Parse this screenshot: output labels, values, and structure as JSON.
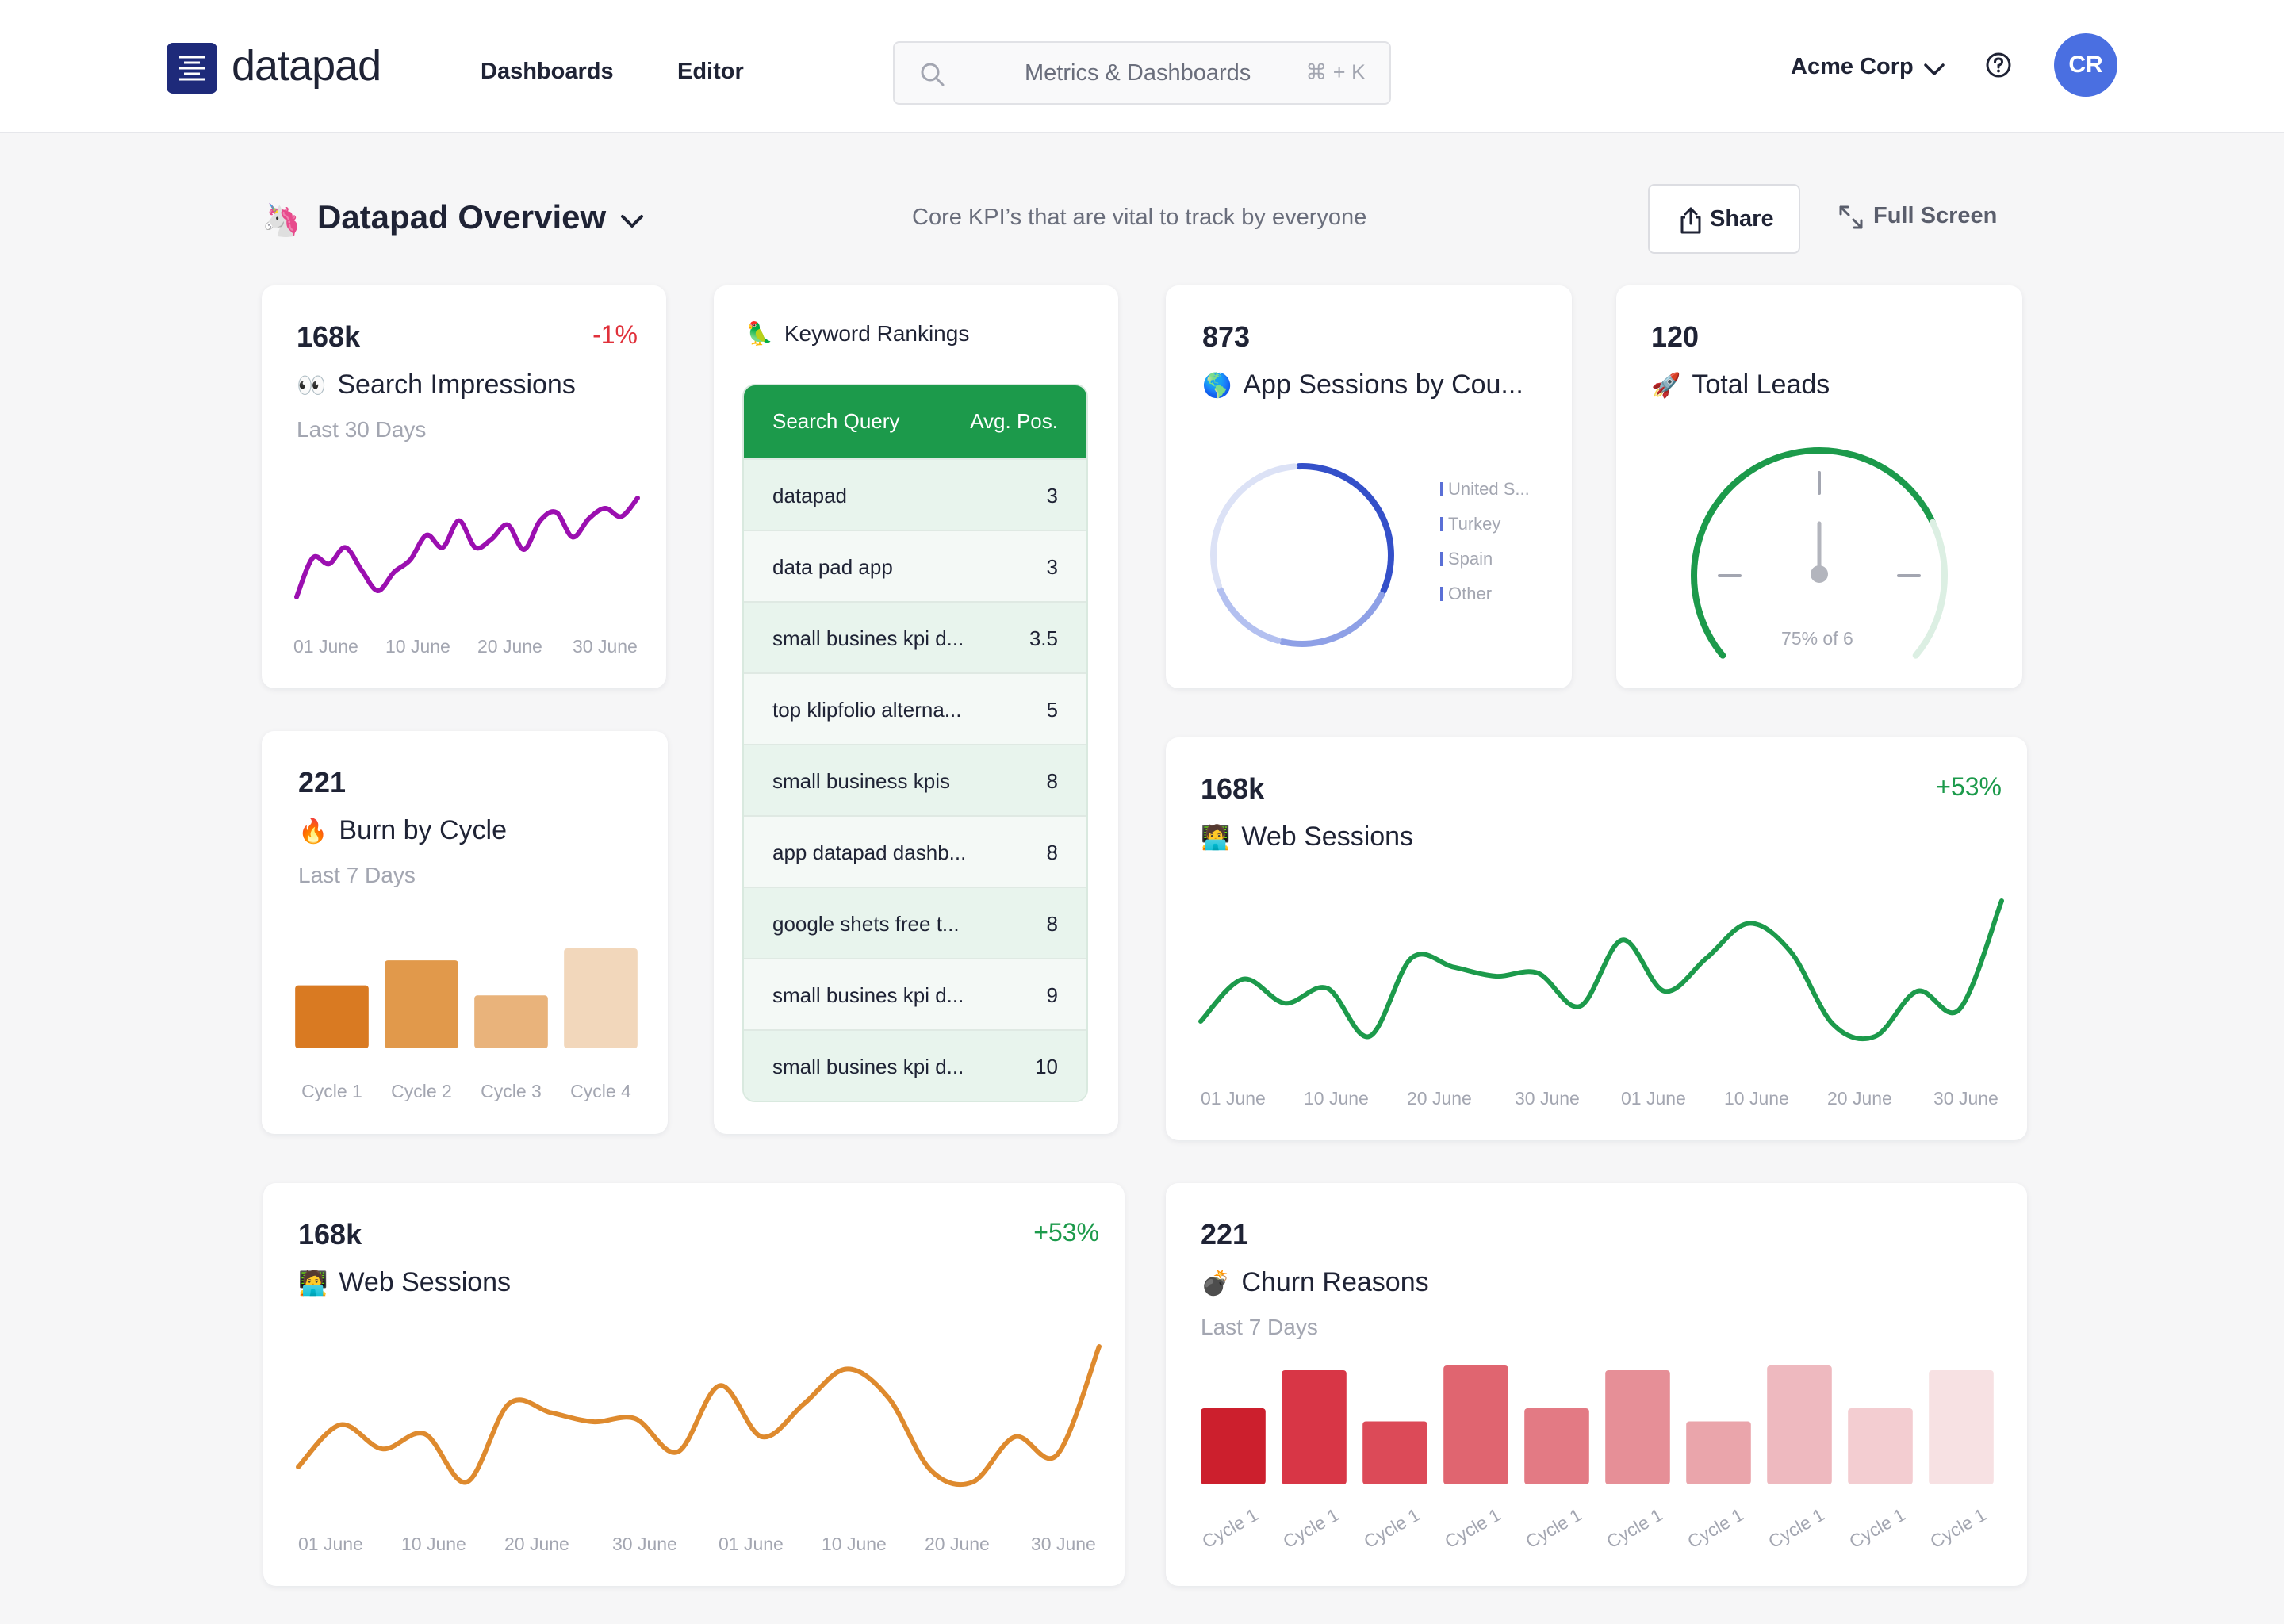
{
  "app": {
    "name": "datapad",
    "nav": [
      "Dashboards",
      "Editor"
    ],
    "search_placeholder": "Metrics & Dashboards",
    "search_shortcut": "⌘ + K",
    "org": "Acme Corp",
    "avatar_initials": "CR"
  },
  "dashboard": {
    "emoji": "🦄",
    "title": "Datapad Overview",
    "subtitle": "Core KPI’s that are vital to track by everyone",
    "share_label": "Share",
    "fullscreen_label": "Full Screen"
  },
  "cards": {
    "impressions": {
      "kpi": "168k",
      "delta": "-1%",
      "emoji": "👀",
      "title": "Search Impressions",
      "subtitle": "Last 30 Days",
      "color": "#9b0fb0",
      "x_labels": [
        "01 June",
        "10 June",
        "20 June",
        "30 June"
      ]
    },
    "keywords": {
      "emoji": "🦜",
      "title": "Keyword Rankings",
      "columns": [
        "Search Query",
        "Avg. Pos."
      ],
      "rows": [
        {
          "query": "datapad",
          "pos": "3"
        },
        {
          "query": "data pad app",
          "pos": "3"
        },
        {
          "query": "small busines kpi d...",
          "pos": "3.5"
        },
        {
          "query": "top klipfolio alterna...",
          "pos": "5"
        },
        {
          "query": "small business kpis",
          "pos": "8"
        },
        {
          "query": "app datapad dashb...",
          "pos": "8"
        },
        {
          "query": "google shets free t...",
          "pos": "8"
        },
        {
          "query": "small busines kpi d...",
          "pos": "9"
        },
        {
          "query": "small busines kpi d...",
          "pos": "10"
        }
      ]
    },
    "app_sessions": {
      "kpi": "873",
      "emoji": "🌎",
      "title": "App Sessions by Cou...",
      "legend": [
        "United S...",
        "Turkey",
        "Spain",
        "Other"
      ]
    },
    "leads": {
      "kpi": "120",
      "emoji": "🚀",
      "title": "Total Leads",
      "gauge_label": "75% of 6",
      "gauge_fraction": 0.75
    },
    "burn": {
      "kpi": "221",
      "emoji": "🔥",
      "title": "Burn by Cycle",
      "subtitle": "Last 7 Days"
    },
    "web_sessions_green": {
      "kpi": "168k",
      "delta": "+53%",
      "emoji": "🧑‍💻",
      "title": "Web Sessions",
      "color": "#1c9a4b",
      "x_labels": [
        "01 June",
        "10 June",
        "20 June",
        "30 June",
        "01 June",
        "10 June",
        "20 June",
        "30 June"
      ]
    },
    "web_sessions_orange": {
      "kpi": "168k",
      "delta": "+53%",
      "emoji": "🧑‍💻",
      "title": "Web Sessions",
      "color": "#de8a2e",
      "x_labels": [
        "01 June",
        "10 June",
        "20 June",
        "30 June",
        "01 June",
        "10 June",
        "20 June",
        "30 June"
      ]
    },
    "churn": {
      "kpi": "221",
      "emoji": "💣",
      "title": "Churn Reasons",
      "subtitle": "Last 7 Days"
    }
  },
  "chart_data": [
    {
      "type": "line",
      "values": [
        0.04,
        0.42,
        0.36,
        0.52,
        0.3,
        0.1,
        0.28,
        0.4,
        0.64,
        0.52,
        0.78,
        0.52,
        0.6,
        0.74,
        0.5,
        0.78,
        0.86,
        0.62,
        0.8,
        0.9,
        0.82,
        1.0
      ],
      "xlabel": "",
      "ylabel": "",
      "x_ticks": [
        "01 June",
        "10 June",
        "20 June",
        "30 June"
      ]
    },
    {
      "type": "bar",
      "categories": [
        "Cycle 1",
        "Cycle 2",
        "Cycle 3",
        "Cycle 4"
      ],
      "values": [
        0.63,
        0.88,
        0.53,
        1.0
      ],
      "colors": [
        "#d97a22",
        "#e1994b",
        "#e9b37b",
        "#f2d7bb"
      ]
    },
    {
      "type": "pie",
      "categories": [
        "United S...",
        "Turkey",
        "Spain",
        "Other"
      ],
      "values": [
        0.33,
        0.22,
        0.15,
        0.3
      ],
      "colors": [
        "#3450c9",
        "#8ea0e6",
        "#b3c0f0",
        "#dce2f6"
      ]
    },
    {
      "type": "line",
      "values": [
        0.2,
        0.48,
        0.32,
        0.42,
        0.1,
        0.62,
        0.56,
        0.5,
        0.52,
        0.3,
        0.74,
        0.4,
        0.62,
        0.85,
        0.66,
        0.18,
        0.1,
        0.4,
        0.28,
        1.0
      ],
      "xlabel": "",
      "ylabel": "",
      "x_ticks": [
        "01 June",
        "10 June",
        "20 June",
        "30 June",
        "01 June",
        "10 June",
        "20 June",
        "30 June"
      ]
    },
    {
      "type": "line",
      "values": [
        0.2,
        0.48,
        0.32,
        0.42,
        0.1,
        0.62,
        0.56,
        0.5,
        0.52,
        0.3,
        0.74,
        0.4,
        0.62,
        0.85,
        0.66,
        0.18,
        0.1,
        0.4,
        0.28,
        1.0
      ],
      "xlabel": "",
      "ylabel": "",
      "x_ticks": [
        "01 June",
        "10 June",
        "20 June",
        "30 June",
        "01 June",
        "10 June",
        "20 June",
        "30 June"
      ]
    },
    {
      "type": "bar",
      "categories": [
        "Cycle 1",
        "Cycle 1",
        "Cycle 1",
        "Cycle 1",
        "Cycle 1",
        "Cycle 1",
        "Cycle 1",
        "Cycle 1",
        "Cycle 1",
        "Cycle 1"
      ],
      "values": [
        0.64,
        0.96,
        0.53,
        1.0,
        0.64,
        0.96,
        0.53,
        1.0,
        0.64,
        0.96
      ],
      "colors": [
        "#cc1f2d",
        "#d83646",
        "#dc4a58",
        "#e06570",
        "#e37a84",
        "#e68f97",
        "#eaa5ab",
        "#eeb9bf",
        "#f3cdd1",
        "#f7e1e3"
      ]
    }
  ]
}
